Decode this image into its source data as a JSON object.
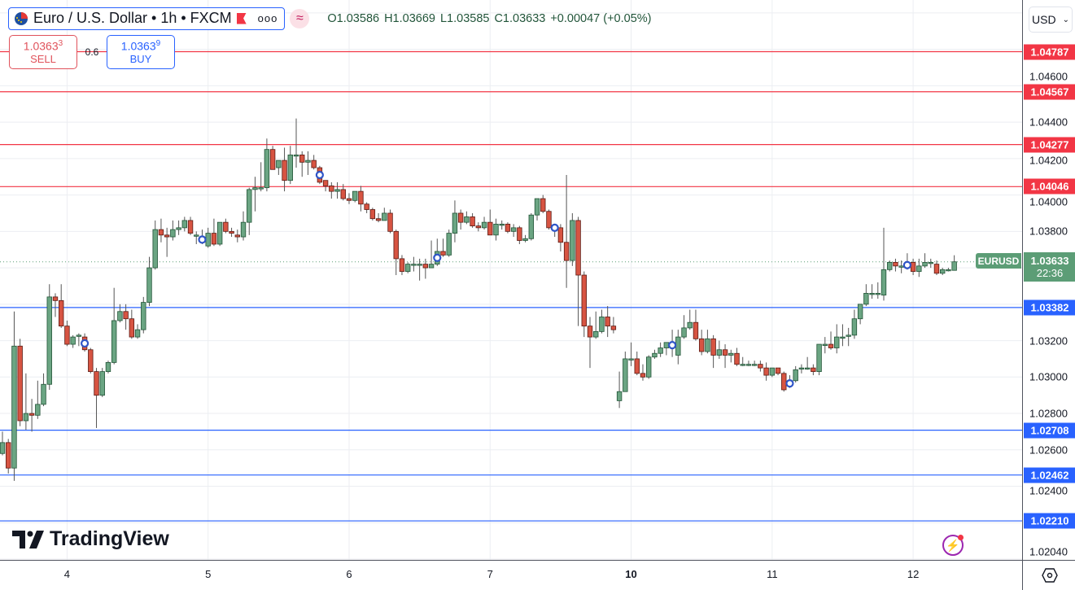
{
  "header": {
    "symbol_title": "Euro / U.S. Dollar • 1h • FXCM",
    "icons": [
      "eu-us-flag-icon",
      "flag-marker-icon",
      "more-icon",
      "approx-indicator-icon"
    ],
    "ohlc": {
      "o": "O1.03586",
      "h": "H1.03669",
      "l": "L1.03585",
      "c": "C1.03633",
      "change": "+0.00047 (+0.05%)"
    }
  },
  "trade": {
    "sell_price": "1.0363",
    "sell_sup": "3",
    "sell_label": "SELL",
    "spread": "0.6",
    "buy_price": "1.0363",
    "buy_sup": "9",
    "buy_label": "BUY"
  },
  "axis": {
    "currency": "USD",
    "y_ticks": [
      "1.04600",
      "1.04400",
      "1.04200",
      "1.04000",
      "1.03800",
      "1.03200",
      "1.03000",
      "1.02800",
      "1.02600",
      "1.02400",
      "1.02040"
    ],
    "x_ticks": [
      "4",
      "5",
      "6",
      "7",
      "10",
      "11",
      "12"
    ]
  },
  "current": {
    "symbol": "EURUSD",
    "price": "1.03633",
    "countdown": "22:36"
  },
  "price_lines": {
    "resistance": [
      "1.04787",
      "1.04567",
      "1.04277",
      "1.04046"
    ],
    "support": [
      "1.03382",
      "1.02708",
      "1.02462",
      "1.02210"
    ]
  },
  "colors": {
    "up": "#6ba583",
    "down": "#d75442",
    "resistance": "#f23645",
    "support": "#2962ff",
    "current": "#5c9d76"
  },
  "logo": "TradingView",
  "chart_data": {
    "type": "candlestick",
    "timeframe": "1h",
    "ylim": [
      1.0202,
      1.0505
    ],
    "grid": true,
    "x_tick_candle_index": [
      11,
      35,
      59,
      83,
      107,
      131,
      155
    ],
    "event_marker_candle_index": [
      14,
      34,
      54,
      74,
      94,
      114,
      134,
      154
    ],
    "candles_ohlc": [
      [
        1.0258,
        1.027,
        1.0257,
        1.0264
      ],
      [
        1.0264,
        1.0266,
        1.0247,
        1.025
      ],
      [
        1.025,
        1.0336,
        1.0243,
        1.0317
      ],
      [
        1.0317,
        1.0321,
        1.0273,
        1.0276
      ],
      [
        1.0276,
        1.0302,
        1.0271,
        1.028
      ],
      [
        1.028,
        1.0288,
        1.027,
        1.0279
      ],
      [
        1.0279,
        1.0298,
        1.0277,
        1.0285
      ],
      [
        1.0285,
        1.0302,
        1.0284,
        1.0296
      ],
      [
        1.0296,
        1.0351,
        1.0293,
        1.0344
      ],
      [
        1.0344,
        1.0346,
        1.0333,
        1.0342
      ],
      [
        1.0342,
        1.0351,
        1.0327,
        1.0328
      ],
      [
        1.0328,
        1.0331,
        1.0317,
        1.0318
      ],
      [
        1.0318,
        1.0323,
        1.0316,
        1.0322
      ],
      [
        1.0323,
        1.0324,
        1.0317,
        1.0323
      ],
      [
        1.0322,
        1.0324,
        1.0314,
        1.0315
      ],
      [
        1.0315,
        1.0316,
        1.0302,
        1.0303
      ],
      [
        1.0303,
        1.0305,
        1.0272,
        1.029
      ],
      [
        1.029,
        1.0305,
        1.0289,
        1.0303
      ],
      [
        1.0303,
        1.0309,
        1.0302,
        1.0308
      ],
      [
        1.0308,
        1.0349,
        1.0307,
        1.0331
      ],
      [
        1.0331,
        1.034,
        1.033,
        1.0336
      ],
      [
        1.0336,
        1.034,
        1.0326,
        1.0332
      ],
      [
        1.0332,
        1.0337,
        1.0321,
        1.0322
      ],
      [
        1.0322,
        1.0329,
        1.0321,
        1.0326
      ],
      [
        1.0326,
        1.0344,
        1.0324,
        1.0341
      ],
      [
        1.0341,
        1.0366,
        1.0339,
        1.036
      ],
      [
        1.036,
        1.0386,
        1.0359,
        1.0381
      ],
      [
        1.0381,
        1.0387,
        1.0374,
        1.0378
      ],
      [
        1.0378,
        1.0382,
        1.0366,
        1.0377
      ],
      [
        1.0377,
        1.0386,
        1.0375,
        1.0381
      ],
      [
        1.0381,
        1.0386,
        1.0378,
        1.0382
      ],
      [
        1.0382,
        1.0388,
        1.038,
        1.0386
      ],
      [
        1.0386,
        1.0388,
        1.0378,
        1.0379
      ],
      [
        1.0378,
        1.038,
        1.0373,
        1.0378
      ],
      [
        1.0377,
        1.0381,
        1.0373,
        1.0374
      ],
      [
        1.0372,
        1.0382,
        1.0371,
        1.0379
      ],
      [
        1.0379,
        1.0387,
        1.0372,
        1.0373
      ],
      [
        1.0373,
        1.0385,
        1.0372,
        1.0385
      ],
      [
        1.0385,
        1.0387,
        1.0379,
        1.038
      ],
      [
        1.038,
        1.0382,
        1.0377,
        1.0379
      ],
      [
        1.0378,
        1.0381,
        1.0374,
        1.0377
      ],
      [
        1.0377,
        1.0391,
        1.0375,
        1.0385
      ],
      [
        1.0385,
        1.0404,
        1.0378,
        1.0403
      ],
      [
        1.0403,
        1.041,
        1.0391,
        1.0404
      ],
      [
        1.0404,
        1.0418,
        1.0402,
        1.0404
      ],
      [
        1.0404,
        1.0431,
        1.0402,
        1.0425
      ],
      [
        1.0425,
        1.0427,
        1.0414,
        1.0414
      ],
      [
        1.0415,
        1.0419,
        1.0411,
        1.0419
      ],
      [
        1.0419,
        1.0426,
        1.0402,
        1.0408
      ],
      [
        1.0408,
        1.0427,
        1.0406,
        1.0422
      ],
      [
        1.0422,
        1.0442,
        1.0415,
        1.0422
      ],
      [
        1.0422,
        1.0424,
        1.041,
        1.0418
      ],
      [
        1.0418,
        1.0424,
        1.0411,
        1.0419
      ],
      [
        1.0419,
        1.0422,
        1.0414,
        1.0415
      ],
      [
        1.0415,
        1.0416,
        1.0406,
        1.0407
      ],
      [
        1.0408,
        1.0408,
        1.0402,
        1.0405
      ],
      [
        1.0405,
        1.0407,
        1.0398,
        1.0402
      ],
      [
        1.0402,
        1.0407,
        1.0398,
        1.0403
      ],
      [
        1.0403,
        1.0406,
        1.0397,
        1.0398
      ],
      [
        1.0398,
        1.0401,
        1.0395,
        1.0397
      ],
      [
        1.0397,
        1.0402,
        1.0396,
        1.0402
      ],
      [
        1.0402,
        1.0405,
        1.0391,
        1.0395
      ],
      [
        1.0395,
        1.0396,
        1.039,
        1.0392
      ],
      [
        1.0392,
        1.0393,
        1.0386,
        1.0387
      ],
      [
        1.0387,
        1.039,
        1.0385,
        1.0386
      ],
      [
        1.0386,
        1.0393,
        1.0386,
        1.039
      ],
      [
        1.039,
        1.0392,
        1.0379,
        1.038
      ],
      [
        1.038,
        1.0381,
        1.0356,
        1.0365
      ],
      [
        1.0365,
        1.0367,
        1.0356,
        1.0358
      ],
      [
        1.0358,
        1.0363,
        1.0357,
        1.0362
      ],
      [
        1.0362,
        1.0366,
        1.0358,
        1.0362
      ],
      [
        1.0362,
        1.0365,
        1.0353,
        1.0362
      ],
      [
        1.0362,
        1.0365,
        1.0354,
        1.036
      ],
      [
        1.036,
        1.0375,
        1.036,
        1.0362
      ],
      [
        1.0362,
        1.0376,
        1.0361,
        1.0369
      ],
      [
        1.0369,
        1.0376,
        1.0366,
        1.0367
      ],
      [
        1.0367,
        1.0381,
        1.0366,
        1.0379
      ],
      [
        1.0379,
        1.0397,
        1.0374,
        1.039
      ],
      [
        1.039,
        1.0392,
        1.0381,
        1.0385
      ],
      [
        1.0385,
        1.0391,
        1.0384,
        1.0388
      ],
      [
        1.0388,
        1.039,
        1.0382,
        1.0383
      ],
      [
        1.0383,
        1.0385,
        1.038,
        1.0382
      ],
      [
        1.0382,
        1.0388,
        1.0381,
        1.0385
      ],
      [
        1.0385,
        1.0392,
        1.0378,
        1.0378
      ],
      [
        1.0378,
        1.0387,
        1.0375,
        1.0384
      ],
      [
        1.0384,
        1.0386,
        1.0381,
        1.0384
      ],
      [
        1.0384,
        1.0385,
        1.0379,
        1.038
      ],
      [
        1.038,
        1.0384,
        1.0377,
        1.0382
      ],
      [
        1.0382,
        1.0383,
        1.0373,
        1.0375
      ],
      [
        1.0375,
        1.0378,
        1.0374,
        1.0376
      ],
      [
        1.0376,
        1.039,
        1.0375,
        1.0389
      ],
      [
        1.0389,
        1.0398,
        1.0386,
        1.0398
      ],
      [
        1.0398,
        1.04,
        1.039,
        1.0391
      ],
      [
        1.0391,
        1.0392,
        1.0381,
        1.0382
      ],
      [
        1.0383,
        1.0384,
        1.0377,
        1.0381
      ],
      [
        1.0382,
        1.0384,
        1.0369,
        1.0374
      ],
      [
        1.0374,
        1.0411,
        1.0349,
        1.0364
      ],
      [
        1.0364,
        1.039,
        1.0361,
        1.0386
      ],
      [
        1.0386,
        1.0388,
        1.0328,
        1.0356
      ],
      [
        1.0356,
        1.0358,
        1.0322,
        1.0328
      ],
      [
        1.0328,
        1.0333,
        1.0305,
        1.0322
      ],
      [
        1.0322,
        1.0336,
        1.0321,
        1.0325
      ],
      [
        1.0325,
        1.0337,
        1.0324,
        1.0333
      ],
      [
        1.0333,
        1.0339,
        1.0322,
        1.0328
      ],
      [
        1.0328,
        1.0333,
        1.0324,
        1.0326
      ],
      [
        1.0287,
        1.0303,
        1.0283,
        1.0292
      ],
      [
        1.0292,
        1.0314,
        1.0292,
        1.031
      ],
      [
        1.031,
        1.0319,
        1.0306,
        1.031
      ],
      [
        1.031,
        1.0314,
        1.0301,
        1.0302
      ],
      [
        1.0302,
        1.0307,
        1.0298,
        1.03
      ],
      [
        1.03,
        1.0312,
        1.0299,
        1.0311
      ],
      [
        1.0311,
        1.0315,
        1.031,
        1.0313
      ],
      [
        1.0313,
        1.0319,
        1.0311,
        1.0316
      ],
      [
        1.0316,
        1.0319,
        1.0312,
        1.0319
      ],
      [
        1.0319,
        1.0326,
        1.0311,
        1.0316
      ],
      [
        1.0312,
        1.0326,
        1.0307,
        1.0322
      ],
      [
        1.0322,
        1.0334,
        1.0321,
        1.0327
      ],
      [
        1.0327,
        1.0337,
        1.0326,
        1.033
      ],
      [
        1.033,
        1.0337,
        1.032,
        1.0321
      ],
      [
        1.0321,
        1.0326,
        1.0312,
        1.0314
      ],
      [
        1.0314,
        1.0326,
        1.0313,
        1.0321
      ],
      [
        1.0321,
        1.0323,
        1.0305,
        1.0312
      ],
      [
        1.0312,
        1.032,
        1.031,
        1.0315
      ],
      [
        1.0315,
        1.0318,
        1.0305,
        1.0312
      ],
      [
        1.0312,
        1.0315,
        1.0308,
        1.0313
      ],
      [
        1.0313,
        1.0316,
        1.0306,
        1.0307
      ],
      [
        1.0307,
        1.0311,
        1.0306,
        1.0307
      ],
      [
        1.0307,
        1.0309,
        1.0306,
        1.0307
      ],
      [
        1.0307,
        1.0309,
        1.0306,
        1.0307
      ],
      [
        1.0307,
        1.0309,
        1.0303,
        1.0305
      ],
      [
        1.0305,
        1.0308,
        1.0298,
        1.0301
      ],
      [
        1.0301,
        1.0305,
        1.03,
        1.0305
      ],
      [
        1.0305,
        1.0305,
        1.0301,
        1.0302
      ],
      [
        1.0302,
        1.0303,
        1.0292,
        1.0293
      ],
      [
        1.0296,
        1.0301,
        1.0294,
        1.0297
      ],
      [
        1.0298,
        1.0306,
        1.0297,
        1.0304
      ],
      [
        1.0305,
        1.0307,
        1.0302,
        1.0305
      ],
      [
        1.0305,
        1.0311,
        1.0304,
        1.0305
      ],
      [
        1.0305,
        1.0307,
        1.0301,
        1.0303
      ],
      [
        1.0303,
        1.0318,
        1.0301,
        1.0318
      ],
      [
        1.0318,
        1.0322,
        1.0313,
        1.0318
      ],
      [
        1.0318,
        1.0325,
        1.0315,
        1.0316
      ],
      [
        1.0316,
        1.0329,
        1.0313,
        1.0322
      ],
      [
        1.0322,
        1.0329,
        1.0317,
        1.0322
      ],
      [
        1.0323,
        1.0327,
        1.0317,
        1.0323
      ],
      [
        1.0323,
        1.0337,
        1.0321,
        1.0332
      ],
      [
        1.0332,
        1.034,
        1.0329,
        1.034
      ],
      [
        1.034,
        1.0351,
        1.0339,
        1.0346
      ],
      [
        1.0346,
        1.0351,
        1.0343,
        1.0346
      ],
      [
        1.0346,
        1.0352,
        1.0343,
        1.0346
      ],
      [
        1.0345,
        1.0382,
        1.0342,
        1.0359
      ],
      [
        1.0359,
        1.0364,
        1.0358,
        1.0363
      ],
      [
        1.0363,
        1.0365,
        1.0358,
        1.0361
      ],
      [
        1.0361,
        1.0364,
        1.0357,
        1.0361
      ],
      [
        1.0361,
        1.0368,
        1.0359,
        1.0362
      ],
      [
        1.0363,
        1.0365,
        1.0356,
        1.0358
      ],
      [
        1.0358,
        1.0365,
        1.0355,
        1.0361
      ],
      [
        1.0361,
        1.0368,
        1.036,
        1.0363
      ],
      [
        1.0363,
        1.0365,
        1.036,
        1.0363
      ],
      [
        1.0362,
        1.0364,
        1.0356,
        1.0357
      ],
      [
        1.0357,
        1.036,
        1.0356,
        1.0359
      ],
      [
        1.0359,
        1.036,
        1.0358,
        1.0359
      ],
      [
        1.03586,
        1.03669,
        1.03585,
        1.03633
      ]
    ]
  }
}
